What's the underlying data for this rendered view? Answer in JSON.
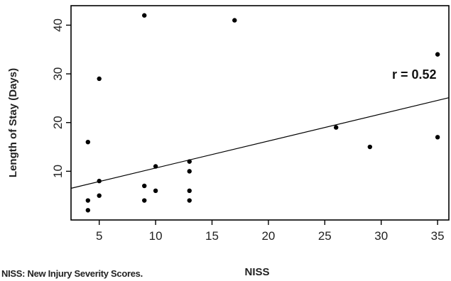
{
  "chart_data": {
    "type": "scatter",
    "title": "",
    "xlabel": "NISS",
    "ylabel": "Length of Stay (Days)",
    "xlim": [
      2.5,
      36
    ],
    "ylim": [
      0,
      44
    ],
    "xticks": [
      5,
      10,
      15,
      20,
      25,
      30,
      35
    ],
    "yticks": [
      10,
      20,
      30,
      40
    ],
    "points": [
      {
        "x": 4,
        "y": 16
      },
      {
        "x": 4,
        "y": 4
      },
      {
        "x": 4,
        "y": 2
      },
      {
        "x": 5,
        "y": 29
      },
      {
        "x": 5,
        "y": 8
      },
      {
        "x": 5,
        "y": 5
      },
      {
        "x": 9,
        "y": 42
      },
      {
        "x": 9,
        "y": 7
      },
      {
        "x": 9,
        "y": 4
      },
      {
        "x": 10,
        "y": 11
      },
      {
        "x": 10,
        "y": 6
      },
      {
        "x": 13,
        "y": 12
      },
      {
        "x": 13,
        "y": 10
      },
      {
        "x": 13,
        "y": 6
      },
      {
        "x": 13,
        "y": 4
      },
      {
        "x": 17,
        "y": 41
      },
      {
        "x": 26,
        "y": 19
      },
      {
        "x": 29,
        "y": 15
      },
      {
        "x": 35,
        "y": 34
      },
      {
        "x": 35,
        "y": 17
      }
    ],
    "trendline": {
      "x": [
        2.5,
        36
      ],
      "y": [
        6.5,
        25.1
      ]
    },
    "annotation": "r = 0.52",
    "footnote": "NISS: New Injury Severity Scores.",
    "grid": false,
    "point_color": "#000000"
  }
}
